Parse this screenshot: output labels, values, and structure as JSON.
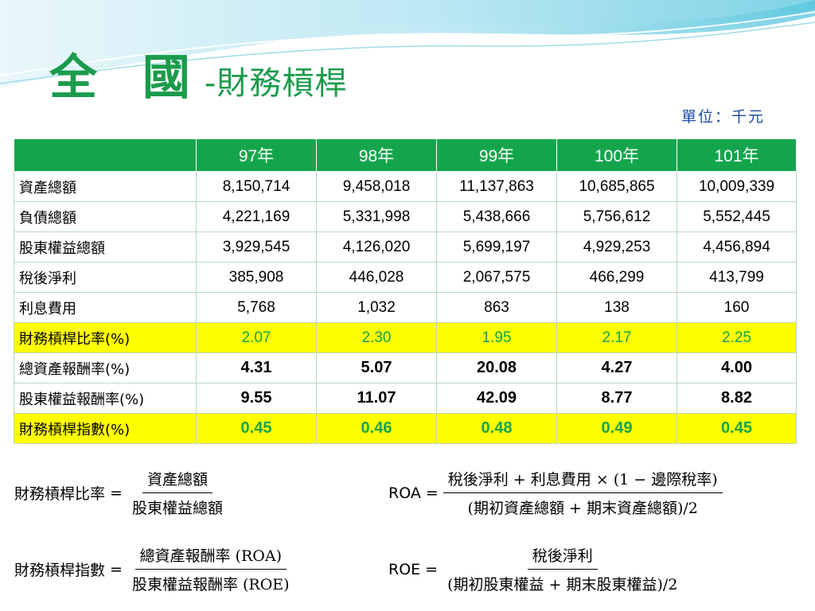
{
  "title": {
    "main": "全 國",
    "sub": "-財務槓桿"
  },
  "unit": "單位：千元",
  "colors": {
    "green": "#14a54c",
    "highlight": "#ffff00"
  },
  "table": {
    "header_blank": "",
    "columns": [
      "97年",
      "98年",
      "99年",
      "100年",
      "101年"
    ],
    "rows": [
      {
        "label": "資產總額",
        "values": [
          "8,150,714",
          "9,458,018",
          "11,137,863",
          "10,685,865",
          "10,009,339"
        ]
      },
      {
        "label": "負債總額",
        "values": [
          "4,221,169",
          "5,331,998",
          "5,438,666",
          "5,756,612",
          "5,552,445"
        ]
      },
      {
        "label": "股東權益總額",
        "values": [
          "3,929,545",
          "4,126,020",
          "5,699,197",
          "4,929,253",
          "4,456,894"
        ]
      },
      {
        "label": "稅後淨利",
        "values": [
          "385,908",
          "446,028",
          "2,067,575",
          "466,299",
          "413,799"
        ]
      },
      {
        "label": "利息費用",
        "values": [
          "5,768",
          "1,032",
          "863",
          "138",
          "160"
        ]
      },
      {
        "label": "財務槓桿比率(%)",
        "values": [
          "2.07",
          "2.30",
          "1.95",
          "2.17",
          "2.25"
        ]
      },
      {
        "label": "總資產報酬率(%)",
        "values": [
          "4.31",
          "5.07",
          "20.08",
          "4.27",
          "4.00"
        ]
      },
      {
        "label": "股東權益報酬率(%)",
        "values": [
          "9.55",
          "11.07",
          "42.09",
          "8.77",
          "8.82"
        ]
      },
      {
        "label": "財務槓桿指數(%)",
        "values": [
          "0.45",
          "0.46",
          "0.48",
          "0.49",
          "0.45"
        ]
      }
    ]
  },
  "formulas": {
    "leverage_ratio": {
      "lhs": "財務槓桿比率",
      "eq": "=",
      "numerator": "資產總額",
      "denominator": "股東權益總額"
    },
    "roa": {
      "lhs": "ROA",
      "eq": "=",
      "numerator": "稅後淨利 + 利息費用  × (1 − 邊際稅率)",
      "denominator": "(期初資產總額 + 期末資產總額)/2"
    },
    "leverage_index": {
      "lhs": "財務槓桿指數",
      "eq": "=",
      "numerator": "總資產報酬率 (ROA)",
      "denominator": "股東權益報酬率 (ROE)"
    },
    "roe": {
      "lhs": "ROE",
      "eq": "=",
      "numerator": "稅後淨利",
      "denominator": "(期初股東權益 + 期末股東權益)/2"
    }
  }
}
